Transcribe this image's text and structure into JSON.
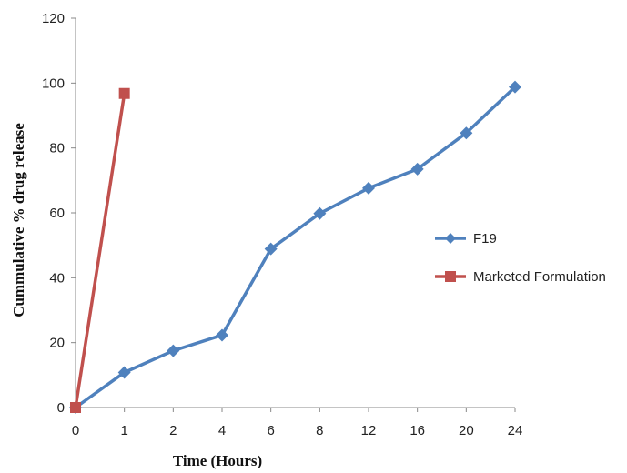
{
  "chart_data": {
    "type": "line",
    "title": "",
    "xlabel": "Time (Hours)",
    "ylabel": "Cummulative % drug release",
    "categories": [
      "0",
      "1",
      "2",
      "4",
      "6",
      "8",
      "12",
      "16",
      "20",
      "24"
    ],
    "ylim": [
      0,
      120
    ],
    "yticks": [
      0,
      20,
      40,
      60,
      80,
      100,
      120
    ],
    "grid": false,
    "legend_position": "right",
    "series": [
      {
        "name": "F19",
        "color": "#4F81BD",
        "marker": "diamond",
        "values": [
          0,
          10.8,
          17.5,
          22.3,
          48.9,
          59.8,
          67.6,
          73.5,
          84.6,
          98.8
        ]
      },
      {
        "name": "Marketed Formulation",
        "color": "#C0504D",
        "marker": "square",
        "values": [
          0,
          96.8,
          null,
          null,
          null,
          null,
          null,
          null,
          null,
          null
        ]
      }
    ]
  }
}
